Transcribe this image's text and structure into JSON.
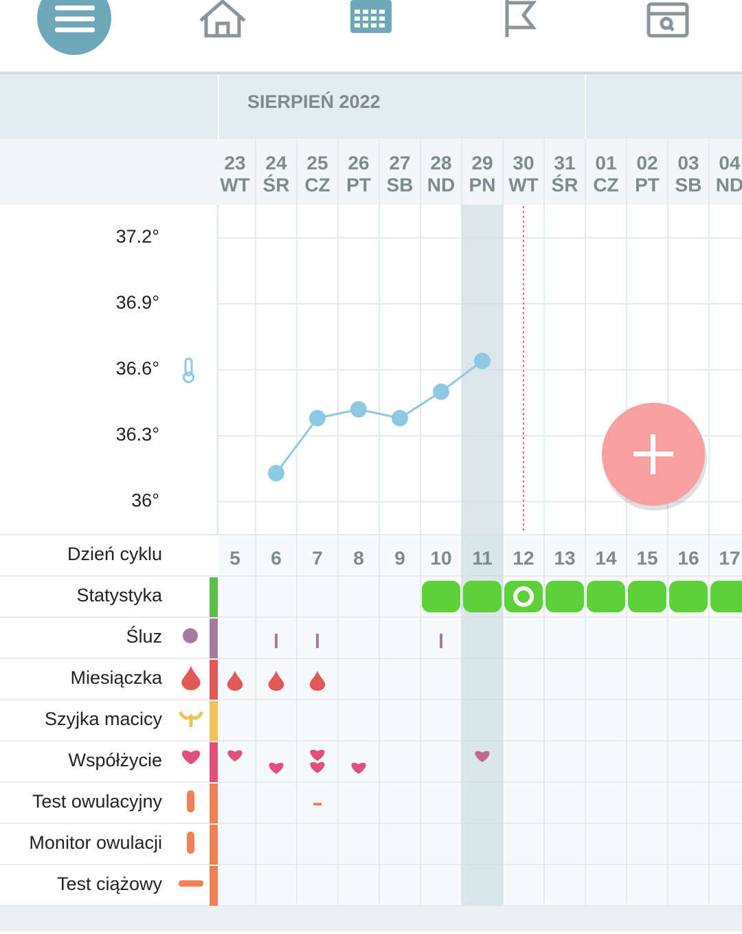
{
  "month": "SIERPIEŃ 2022",
  "days": [
    {
      "date": "23",
      "weekday": "WT"
    },
    {
      "date": "24",
      "weekday": "ŚR"
    },
    {
      "date": "25",
      "weekday": "CZ"
    },
    {
      "date": "26",
      "weekday": "PT"
    },
    {
      "date": "27",
      "weekday": "SB"
    },
    {
      "date": "28",
      "weekday": "ND",
      "color": "#d9464b"
    },
    {
      "date": "29",
      "weekday": "PN"
    },
    {
      "date": "30",
      "weekday": "WT"
    },
    {
      "date": "31",
      "weekday": "ŚR"
    },
    {
      "date": "01",
      "weekday": "CZ"
    },
    {
      "date": "02",
      "weekday": "PT"
    },
    {
      "date": "03",
      "weekday": "SB"
    },
    {
      "date": "04",
      "weekday": "ND",
      "color": "#d9464b"
    }
  ],
  "temperature": {
    "ylim": [
      35.85,
      37.35
    ],
    "yticks": [
      {
        "value": 37.2,
        "label": "37.2°"
      },
      {
        "value": 36.9,
        "label": "36.9°"
      },
      {
        "value": 36.6,
        "label": "36.6°"
      },
      {
        "value": 36.3,
        "label": "36.3°"
      },
      {
        "value": 36,
        "label": "36°"
      }
    ],
    "values": [
      null,
      36.13,
      36.38,
      36.42,
      36.38,
      36.5,
      36.64,
      null,
      null,
      null,
      null,
      null,
      null
    ],
    "color": "#8ec9e3"
  },
  "cycle_days": [
    5,
    6,
    7,
    8,
    9,
    10,
    11,
    12,
    13,
    14,
    15,
    16,
    17
  ],
  "rows": [
    "Dzień cyklu",
    "Statystyka",
    "Śluz",
    "Miesiączka",
    "Szyjka macicy",
    "Współżycie",
    "Test owulacyjny",
    "Monitor owulacji",
    "Test ciążowy"
  ]
}
